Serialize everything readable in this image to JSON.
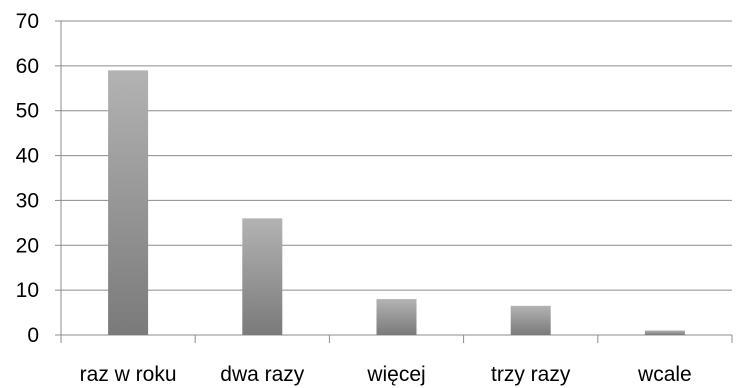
{
  "chart_data": {
    "type": "bar",
    "categories": [
      "raz w roku",
      "dwa razy",
      "więcej",
      "trzy razy",
      "wcale"
    ],
    "values": [
      59,
      26,
      8,
      6.5,
      1
    ],
    "ylim": [
      0,
      70
    ],
    "yticks": [
      "0",
      "10",
      "20",
      "30",
      "40",
      "50",
      "60",
      "70"
    ],
    "grid": true,
    "legend": "none",
    "colors": {
      "bar_light": "#b3b3b3",
      "bar_dark": "#7a7a7a",
      "grid": "#8c8c8c",
      "axis": "#8c8c8c"
    }
  }
}
